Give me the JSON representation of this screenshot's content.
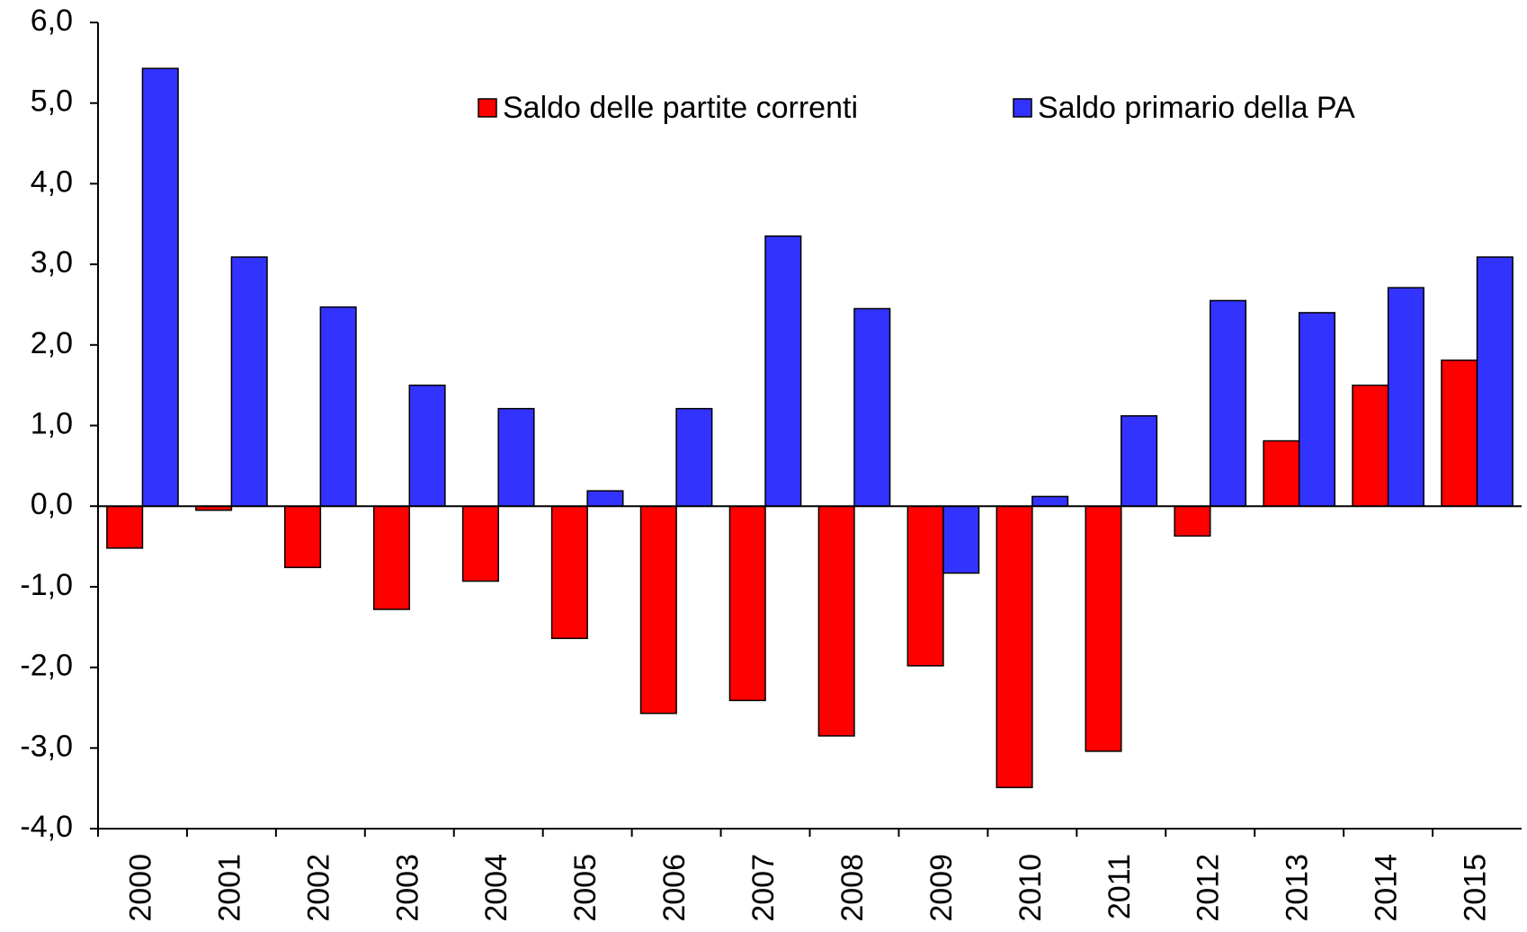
{
  "chart_data": {
    "type": "bar",
    "categories": [
      "2000",
      "2001",
      "2002",
      "2003",
      "2004",
      "2005",
      "2006",
      "2007",
      "2008",
      "2009",
      "2010",
      "2011",
      "2012",
      "2013",
      "2014",
      "2015"
    ],
    "series": [
      {
        "name": "Saldo delle partite correnti",
        "color": "#ff0000",
        "values": [
          -0.52,
          -0.05,
          -0.76,
          -1.28,
          -0.93,
          -1.64,
          -2.57,
          -2.41,
          -2.85,
          -1.98,
          -3.49,
          -3.04,
          -0.37,
          0.81,
          1.5,
          1.81
        ]
      },
      {
        "name": "Saldo primario della PA",
        "color": "#3333ff",
        "values": [
          5.43,
          3.09,
          2.47,
          1.5,
          1.21,
          0.19,
          1.21,
          3.35,
          2.45,
          -0.83,
          0.12,
          1.12,
          2.55,
          2.4,
          2.71,
          3.09
        ]
      }
    ],
    "ylim": [
      -4,
      6
    ],
    "yticks": [
      {
        "value": -4,
        "label": "-4,0"
      },
      {
        "value": -3,
        "label": "-3,0"
      },
      {
        "value": -2,
        "label": "-2,0"
      },
      {
        "value": -1,
        "label": "-1,0"
      },
      {
        "value": 0,
        "label": "0,0"
      },
      {
        "value": 1,
        "label": "1,0"
      },
      {
        "value": 2,
        "label": "2,0"
      },
      {
        "value": 3,
        "label": "3,0"
      },
      {
        "value": 4,
        "label": "4,0"
      },
      {
        "value": 5,
        "label": "5,0"
      },
      {
        "value": 6,
        "label": "6,0"
      }
    ],
    "grid": false
  }
}
